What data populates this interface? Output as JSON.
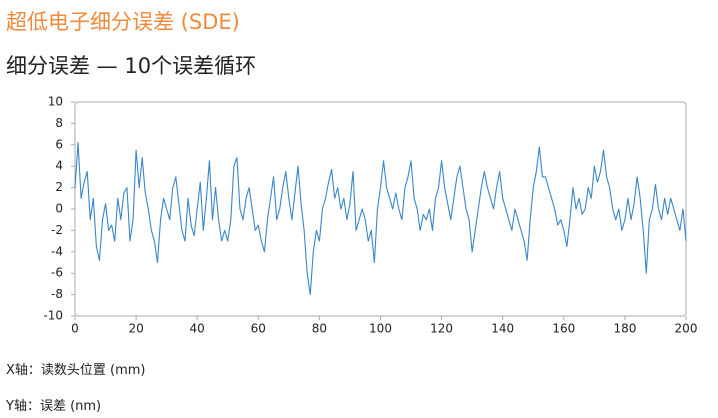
{
  "chart_data": {
    "type": "line",
    "title": "超低电子细分误差 (SDE)",
    "subtitle": "细分误差 — 10个误差循环",
    "x_note": "X轴：读数头位置 (mm)",
    "y_note": "Y轴：误差 (nm)",
    "x": [
      0,
      1,
      2,
      3,
      4,
      5,
      6,
      7,
      8,
      9,
      10,
      11,
      12,
      13,
      14,
      15,
      16,
      17,
      18,
      19,
      20,
      21,
      22,
      23,
      24,
      25,
      26,
      27,
      28,
      29,
      30,
      31,
      32,
      33,
      34,
      35,
      36,
      37,
      38,
      39,
      40,
      41,
      42,
      43,
      44,
      45,
      46,
      47,
      48,
      49,
      50,
      51,
      52,
      53,
      54,
      55,
      56,
      57,
      58,
      59,
      60,
      61,
      62,
      63,
      64,
      65,
      66,
      67,
      68,
      69,
      70,
      71,
      72,
      73,
      74,
      75,
      76,
      77,
      78,
      79,
      80,
      81,
      82,
      83,
      84,
      85,
      86,
      87,
      88,
      89,
      90,
      91,
      92,
      93,
      94,
      95,
      96,
      97,
      98,
      99,
      100,
      101,
      102,
      103,
      104,
      105,
      106,
      107,
      108,
      109,
      110,
      111,
      112,
      113,
      114,
      115,
      116,
      117,
      118,
      119,
      120,
      121,
      122,
      123,
      124,
      125,
      126,
      127,
      128,
      129,
      130,
      131,
      132,
      133,
      134,
      135,
      136,
      137,
      138,
      139,
      140,
      141,
      142,
      143,
      144,
      145,
      146,
      147,
      148,
      149,
      150,
      151,
      152,
      153,
      154,
      155,
      156,
      157,
      158,
      159,
      160,
      161,
      162,
      163,
      164,
      165,
      166,
      167,
      168,
      169,
      170,
      171,
      172,
      173,
      174,
      175,
      176,
      177,
      178,
      179,
      180,
      181,
      182,
      183,
      184,
      185,
      186,
      187,
      188,
      189,
      190,
      191,
      192,
      193,
      194,
      195,
      196,
      197,
      198,
      199,
      200
    ],
    "series": [
      {
        "color": "#3a86c8",
        "values": [
          2,
          6.2,
          1,
          2.5,
          3.5,
          -1,
          1,
          -3.5,
          -4.8,
          -1,
          0.5,
          -2,
          -1.5,
          -3,
          1,
          -1,
          1.5,
          2,
          -3,
          -1,
          5.5,
          2,
          4.8,
          1.5,
          0,
          -2,
          -3,
          -5,
          -1,
          1,
          0,
          -1,
          2,
          3,
          0.5,
          -2,
          -3,
          1,
          -1.5,
          -2.5,
          0,
          2.5,
          -2,
          1,
          4.5,
          -1,
          2,
          -1,
          -3,
          -2,
          -3,
          -1,
          4,
          4.8,
          0,
          -1,
          1,
          2,
          0,
          -2,
          -1.5,
          -3,
          -4,
          -1,
          1,
          3,
          -1,
          0,
          2,
          3.5,
          1,
          -1,
          1.5,
          4,
          0.5,
          -2,
          -6,
          -8,
          -4,
          -2,
          -3,
          0,
          1,
          2.5,
          3.7,
          1,
          2,
          0,
          1,
          -1,
          0.5,
          3.5,
          -2,
          -1,
          0,
          -1,
          -3,
          -2,
          -5,
          0,
          2,
          4.5,
          2,
          1,
          0,
          1.5,
          0,
          -1,
          2,
          3,
          4.5,
          1,
          0,
          -2,
          -0.5,
          -1,
          0,
          -2,
          1,
          2,
          4.5,
          2,
          0.5,
          -1,
          1,
          3,
          4,
          2,
          0,
          -1,
          -4,
          -2,
          0,
          2,
          3.5,
          2,
          1,
          0,
          2,
          3.5,
          1,
          0,
          -1,
          -2,
          0,
          -1,
          -2,
          -3,
          -4.8,
          -1,
          2,
          3.5,
          5.8,
          3,
          3,
          2,
          1,
          0,
          -1.5,
          -1,
          -2,
          -3.5,
          -1,
          2,
          0,
          1,
          -0.5,
          0,
          2,
          1,
          4,
          2.5,
          3.5,
          5.5,
          3,
          2,
          0,
          -1,
          0,
          -2,
          -1,
          1,
          -1,
          0.5,
          3,
          1,
          -2,
          -6,
          -1,
          0,
          2.3,
          0,
          -1,
          1,
          -0.5,
          1,
          0,
          -1,
          -2,
          0,
          -3
        ]
      }
    ],
    "xlim": [
      0,
      200
    ],
    "xticks": [
      0,
      20,
      40,
      60,
      80,
      100,
      120,
      140,
      160,
      180,
      200
    ],
    "ylim": [
      -10,
      10
    ],
    "yticks": [
      -10,
      -8,
      -6,
      -4,
      -2,
      0,
      2,
      4,
      6,
      8,
      10
    ],
    "grid": false
  }
}
